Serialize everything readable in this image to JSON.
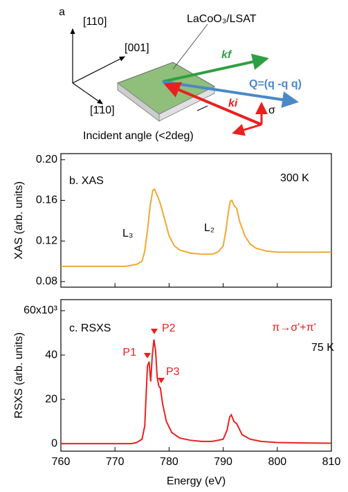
{
  "diagram": {
    "panel_label": "a",
    "axis_110": "[110]",
    "axis_001": "[001]",
    "axis_1bar10": "[1̄10]",
    "sample": "LaCoO₃/LSAT",
    "k_f": "kf",
    "Q": "Q=(q -q q)",
    "k_i": "ki",
    "sigma": "σ",
    "incident": "Incident angle (<2deg)"
  },
  "chart_data": [
    {
      "type": "line",
      "title": "b. XAS",
      "ylabel": "XAS (arb. units)",
      "color": "#f0a830",
      "x": [
        760,
        772,
        774,
        775,
        775.5,
        776,
        776.5,
        777,
        777.3,
        777.8,
        778.3,
        779,
        780,
        781,
        782,
        784,
        786,
        788,
        789,
        790,
        790.5,
        791,
        791.3,
        791.6,
        792,
        792.5,
        793,
        794,
        795,
        796,
        798,
        800,
        805,
        810
      ],
      "values": [
        0.095,
        0.095,
        0.097,
        0.1,
        0.11,
        0.13,
        0.155,
        0.17,
        0.171,
        0.165,
        0.158,
        0.145,
        0.125,
        0.115,
        0.111,
        0.108,
        0.107,
        0.107,
        0.109,
        0.115,
        0.13,
        0.15,
        0.159,
        0.16,
        0.155,
        0.152,
        0.14,
        0.125,
        0.117,
        0.113,
        0.11,
        0.109,
        0.109,
        0.109
      ],
      "xlim": [
        760,
        810
      ],
      "xticks": [
        760,
        770,
        780,
        790,
        800,
        810
      ],
      "show_x_tick_labels": false,
      "ylim": [
        0.0745,
        0.206
      ],
      "yticks": [
        0.08,
        0.12,
        0.16,
        {
          "value": 0.2,
          "label": "0.20"
        }
      ],
      "annotations": [
        {
          "text": "300 K",
          "color": "#000000"
        },
        {
          "text": "L₃",
          "color": "#000000"
        },
        {
          "text": "L₂",
          "color": "#000000"
        }
      ]
    },
    {
      "type": "line",
      "title": "c. RSXS",
      "ylabel": "RSXS (arb. units)",
      "xlabel": "Energy (eV)",
      "color": "#e8201e",
      "x": [
        760,
        773,
        774,
        775,
        775.5,
        776,
        776.3,
        776.6,
        776.9,
        777.2,
        777.5,
        777.8,
        778.1,
        778.4,
        778.8,
        779.5,
        780.5,
        782,
        784,
        786,
        788,
        790,
        790.7,
        791.2,
        791.5,
        792,
        792.5,
        793.5,
        795,
        797,
        800,
        805,
        810
      ],
      "values": [
        0,
        0,
        500,
        2000,
        8000,
        35000,
        37000,
        28000,
        40000,
        47000,
        42000,
        30000,
        26000,
        25000,
        18000,
        10000,
        5000,
        2500,
        1500,
        1000,
        1000,
        2000,
        6000,
        12000,
        13000,
        10000,
        9000,
        4000,
        2000,
        1000,
        500,
        300,
        200
      ],
      "xlim": [
        760,
        810
      ],
      "xticks": [
        760,
        770,
        780,
        790,
        800,
        810
      ],
      "show_x_tick_labels": true,
      "ylim": [
        -3400,
        65000
      ],
      "yticks": [
        0,
        {
          "value": 20000,
          "label": "20"
        },
        {
          "value": 40000,
          "label": "40"
        },
        {
          "value": 60000,
          "label": "60x10³"
        }
      ],
      "annotations": [
        {
          "text": "P1",
          "color": "#e8201e"
        },
        {
          "text": "P2",
          "color": "#e8201e"
        },
        {
          "text": "P3",
          "color": "#e8201e"
        },
        {
          "text": "π→σ'+π'",
          "color": "#e8201e"
        },
        {
          "text": "75 K",
          "color": "#000000"
        }
      ]
    }
  ]
}
